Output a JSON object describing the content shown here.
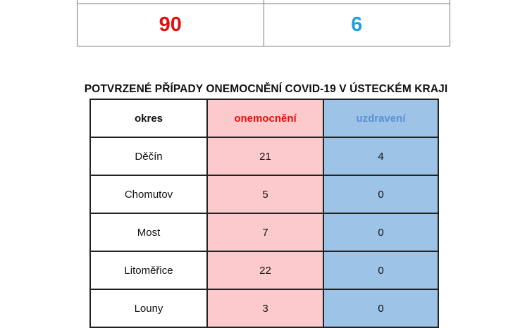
{
  "summary": {
    "cases": "90",
    "recovered": "6",
    "cases_color": "#e31010",
    "recovered_color": "#1ea0dc"
  },
  "title": "POTVRZENÉ PŘÍPADY ONEMOCNĚNÍ COVID-19 V ÚSTECKÉM KRAJI",
  "table": {
    "headers": {
      "district": "okres",
      "cases": "onemocnění",
      "recovered": "uzdravení"
    },
    "colors": {
      "cases_bg": "#fccaca",
      "recovered_bg": "#9dc3e6",
      "cases_header": "#e31010",
      "recovered_header": "#5b8fd6"
    },
    "rows": [
      {
        "district": "Děčín",
        "cases": "21",
        "recovered": "4"
      },
      {
        "district": "Chomutov",
        "cases": "5",
        "recovered": "0"
      },
      {
        "district": "Most",
        "cases": "7",
        "recovered": "0"
      },
      {
        "district": "Litoměřice",
        "cases": "22",
        "recovered": "0"
      },
      {
        "district": "Louny",
        "cases": "3",
        "recovered": "0"
      }
    ]
  }
}
